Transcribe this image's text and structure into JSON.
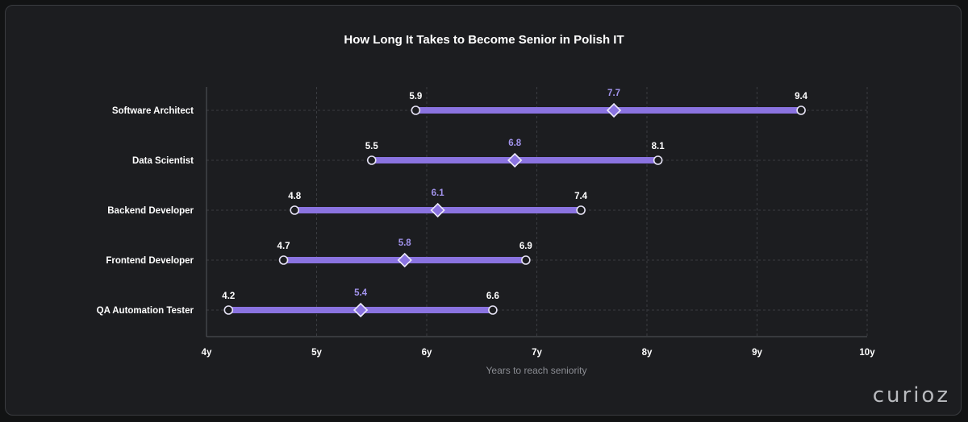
{
  "chart_data": {
    "type": "dumbbell-range",
    "title": "How Long It Takes to Become Senior in Polish IT",
    "xlabel": "Years to reach seniority",
    "xlim": [
      4,
      10
    ],
    "ticks": [
      {
        "value": 4,
        "label": "4y"
      },
      {
        "value": 5,
        "label": "5y"
      },
      {
        "value": 6,
        "label": "6y"
      },
      {
        "value": 7,
        "label": "7y"
      },
      {
        "value": 8,
        "label": "8y"
      },
      {
        "value": 9,
        "label": "9y"
      },
      {
        "value": 10,
        "label": "10y"
      }
    ],
    "series_fields": [
      "min",
      "median",
      "max"
    ],
    "rows": [
      {
        "category": "Software Architect",
        "min": 5.9,
        "median": 7.7,
        "max": 9.4,
        "min_label": "5.9",
        "median_label": "7.7",
        "max_label": "9.4"
      },
      {
        "category": "Data Scientist",
        "min": 5.5,
        "median": 6.8,
        "max": 8.1,
        "min_label": "5.5",
        "median_label": "6.8",
        "max_label": "8.1"
      },
      {
        "category": "Backend Developer",
        "min": 4.8,
        "median": 6.1,
        "max": 7.4,
        "min_label": "4.8",
        "median_label": "6.1",
        "max_label": "7.4"
      },
      {
        "category": "Frontend Developer",
        "min": 4.7,
        "median": 5.8,
        "max": 6.9,
        "min_label": "4.7",
        "median_label": "5.8",
        "max_label": "6.9"
      },
      {
        "category": "QA Automation Tester",
        "min": 4.2,
        "median": 5.4,
        "max": 6.6,
        "min_label": "4.2",
        "median_label": "5.4",
        "max_label": "6.6"
      }
    ],
    "colors": {
      "bar": "#8a73e0",
      "median_label": "#a293ec",
      "background": "#1c1d20"
    }
  },
  "brand": "curioz"
}
